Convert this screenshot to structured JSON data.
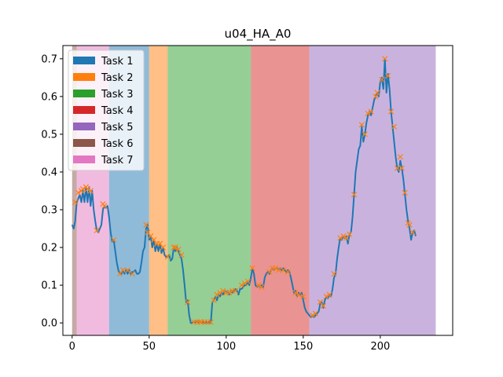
{
  "chart_data": {
    "type": "line",
    "title": "u04_HA_A0",
    "xlabel": "",
    "ylabel": "",
    "xlim": [
      -6,
      247
    ],
    "ylim": [
      -0.033,
      0.735
    ],
    "xticks": [
      0,
      50,
      100,
      150,
      200
    ],
    "yticks": [
      0.0,
      0.1,
      0.2,
      0.3,
      0.4,
      0.5,
      0.6,
      0.7
    ],
    "xtick_labels": [
      "0",
      "50",
      "100",
      "150",
      "200"
    ],
    "ytick_labels": [
      "0.0",
      "0.1",
      "0.2",
      "0.3",
      "0.4",
      "0.5",
      "0.6",
      "0.7"
    ],
    "legend_placement": "upper-left",
    "legend": [
      {
        "name": "Task 1",
        "color": "#1f77b4"
      },
      {
        "name": "Task 2",
        "color": "#ff7f0e"
      },
      {
        "name": "Task 3",
        "color": "#2ca02c"
      },
      {
        "name": "Task 4",
        "color": "#d62728"
      },
      {
        "name": "Task 5",
        "color": "#9467bd"
      },
      {
        "name": "Task 6",
        "color": "#8c564b"
      },
      {
        "name": "Task 7",
        "color": "#e377c2"
      }
    ],
    "task_spans": [
      {
        "task": "Task 6",
        "start": 0,
        "end": 3,
        "color": "#8c564b"
      },
      {
        "task": "Task 7",
        "start": 3,
        "end": 24,
        "color": "#e377c2"
      },
      {
        "task": "Task 1",
        "start": 24,
        "end": 50,
        "color": "#1f77b4"
      },
      {
        "task": "Task 2",
        "start": 50,
        "end": 62,
        "color": "#ff7f0e"
      },
      {
        "task": "Task 3",
        "start": 62,
        "end": 116,
        "color": "#2ca02c"
      },
      {
        "task": "Task 4",
        "start": 116,
        "end": 154,
        "color": "#d62728"
      },
      {
        "task": "Task 5",
        "start": 154,
        "end": 236,
        "color": "#9467bd"
      }
    ],
    "series": [
      {
        "color": "#1f77b4",
        "points": [
          [
            0,
            0.26
          ],
          [
            1,
            0.25
          ],
          [
            2,
            0.27
          ],
          [
            3,
            0.32
          ],
          [
            4,
            0.33
          ],
          [
            5,
            0.34
          ],
          [
            6,
            0.32
          ],
          [
            7,
            0.35
          ],
          [
            8,
            0.32
          ],
          [
            9,
            0.36
          ],
          [
            10,
            0.32
          ],
          [
            11,
            0.36
          ],
          [
            12,
            0.31
          ],
          [
            13,
            0.35
          ],
          [
            14,
            0.3
          ],
          [
            15,
            0.27
          ],
          [
            16,
            0.245
          ],
          [
            17,
            0.24
          ],
          [
            18,
            0.25
          ],
          [
            19,
            0.26
          ],
          [
            20,
            0.3
          ],
          [
            21,
            0.31
          ],
          [
            22,
            0.305
          ],
          [
            23,
            0.31
          ],
          [
            24,
            0.28
          ],
          [
            25,
            0.24
          ],
          [
            26,
            0.215
          ],
          [
            27,
            0.22
          ],
          [
            28,
            0.19
          ],
          [
            29,
            0.16
          ],
          [
            30,
            0.14
          ],
          [
            31,
            0.13
          ],
          [
            32,
            0.13
          ],
          [
            33,
            0.14
          ],
          [
            34,
            0.13
          ],
          [
            35,
            0.14
          ],
          [
            36,
            0.13
          ],
          [
            37,
            0.14
          ],
          [
            38,
            0.13
          ],
          [
            39,
            0.135
          ],
          [
            40,
            0.135
          ],
          [
            41,
            0.14
          ],
          [
            42,
            0.13
          ],
          [
            43,
            0.13
          ],
          [
            44,
            0.135
          ],
          [
            45,
            0.16
          ],
          [
            46,
            0.19
          ],
          [
            47,
            0.2
          ],
          [
            48,
            0.25
          ],
          [
            49,
            0.26
          ],
          [
            50,
            0.22
          ],
          [
            51,
            0.23
          ],
          [
            52,
            0.2
          ],
          [
            53,
            0.22
          ],
          [
            54,
            0.19
          ],
          [
            55,
            0.21
          ],
          [
            56,
            0.19
          ],
          [
            57,
            0.21
          ],
          [
            58,
            0.185
          ],
          [
            59,
            0.2
          ],
          [
            60,
            0.18
          ],
          [
            61,
            0.175
          ],
          [
            62,
            0.175
          ],
          [
            63,
            0.18
          ],
          [
            64,
            0.165
          ],
          [
            65,
            0.17
          ],
          [
            66,
            0.2
          ],
          [
            67,
            0.19
          ],
          [
            68,
            0.2
          ],
          [
            69,
            0.19
          ],
          [
            70,
            0.18
          ],
          [
            71,
            0.17
          ],
          [
            72,
            0.14
          ],
          [
            73,
            0.1
          ],
          [
            74,
            0.055
          ],
          [
            75,
            0.06
          ],
          [
            76,
            0.02
          ],
          [
            77,
            0.0
          ],
          [
            78,
            0.0
          ],
          [
            79,
            0.003
          ],
          [
            80,
            0.0
          ],
          [
            81,
            0.004
          ],
          [
            82,
            0.0
          ],
          [
            83,
            0.003
          ],
          [
            84,
            0.0
          ],
          [
            85,
            0.003
          ],
          [
            86,
            0.0
          ],
          [
            87,
            0.002
          ],
          [
            88,
            0.0
          ],
          [
            89,
            0.003
          ],
          [
            90,
            0.0
          ],
          [
            91,
            0.055
          ],
          [
            92,
            0.06
          ],
          [
            93,
            0.07
          ],
          [
            94,
            0.06
          ],
          [
            95,
            0.075
          ],
          [
            96,
            0.07
          ],
          [
            97,
            0.08
          ],
          [
            98,
            0.075
          ],
          [
            99,
            0.085
          ],
          [
            100,
            0.08
          ],
          [
            101,
            0.085
          ],
          [
            102,
            0.075
          ],
          [
            103,
            0.085
          ],
          [
            104,
            0.08
          ],
          [
            105,
            0.085
          ],
          [
            106,
            0.09
          ],
          [
            107,
            0.085
          ],
          [
            108,
            0.075
          ],
          [
            109,
            0.09
          ],
          [
            110,
            0.09
          ],
          [
            111,
            0.095
          ],
          [
            112,
            0.1
          ],
          [
            113,
            0.1
          ],
          [
            114,
            0.11
          ],
          [
            115,
            0.1
          ],
          [
            116,
            0.12
          ],
          [
            117,
            0.145
          ],
          [
            118,
            0.13
          ],
          [
            119,
            0.1
          ],
          [
            120,
            0.095
          ],
          [
            121,
            0.1
          ],
          [
            122,
            0.095
          ],
          [
            123,
            0.1
          ],
          [
            124,
            0.095
          ],
          [
            125,
            0.12
          ],
          [
            126,
            0.13
          ],
          [
            127,
            0.135
          ],
          [
            128,
            0.13
          ],
          [
            129,
            0.14
          ],
          [
            130,
            0.145
          ],
          [
            131,
            0.14
          ],
          [
            132,
            0.145
          ],
          [
            133,
            0.145
          ],
          [
            134,
            0.14
          ],
          [
            135,
            0.145
          ],
          [
            136,
            0.14
          ],
          [
            137,
            0.145
          ],
          [
            138,
            0.14
          ],
          [
            139,
            0.135
          ],
          [
            140,
            0.14
          ],
          [
            141,
            0.135
          ],
          [
            142,
            0.12
          ],
          [
            143,
            0.1
          ],
          [
            144,
            0.08
          ],
          [
            145,
            0.085
          ],
          [
            146,
            0.07
          ],
          [
            147,
            0.08
          ],
          [
            148,
            0.075
          ],
          [
            149,
            0.08
          ],
          [
            150,
            0.06
          ],
          [
            151,
            0.04
          ],
          [
            152,
            0.03
          ],
          [
            153,
            0.025
          ],
          [
            154,
            0.02
          ],
          [
            155,
            0.015
          ],
          [
            156,
            0.02
          ],
          [
            157,
            0.015
          ],
          [
            158,
            0.02
          ],
          [
            159,
            0.025
          ],
          [
            160,
            0.03
          ],
          [
            161,
            0.05
          ],
          [
            162,
            0.055
          ],
          [
            163,
            0.04
          ],
          [
            164,
            0.06
          ],
          [
            165,
            0.07
          ],
          [
            166,
            0.065
          ],
          [
            167,
            0.075
          ],
          [
            168,
            0.07
          ],
          [
            169,
            0.09
          ],
          [
            170,
            0.12
          ],
          [
            171,
            0.13
          ],
          [
            172,
            0.17
          ],
          [
            173,
            0.2
          ],
          [
            174,
            0.225
          ],
          [
            175,
            0.22
          ],
          [
            176,
            0.23
          ],
          [
            177,
            0.225
          ],
          [
            178,
            0.23
          ],
          [
            179,
            0.21
          ],
          [
            180,
            0.235
          ],
          [
            181,
            0.24
          ],
          [
            182,
            0.28
          ],
          [
            183,
            0.34
          ],
          [
            184,
            0.4
          ],
          [
            185,
            0.43
          ],
          [
            186,
            0.46
          ],
          [
            187,
            0.47
          ],
          [
            188,
            0.52
          ],
          [
            189,
            0.48
          ],
          [
            190,
            0.5
          ],
          [
            191,
            0.53
          ],
          [
            192,
            0.55
          ],
          [
            193,
            0.56
          ],
          [
            194,
            0.55
          ],
          [
            195,
            0.57
          ],
          [
            196,
            0.59
          ],
          [
            197,
            0.6
          ],
          [
            198,
            0.61
          ],
          [
            199,
            0.6
          ],
          [
            200,
            0.64
          ],
          [
            201,
            0.65
          ],
          [
            202,
            0.62
          ],
          [
            203,
            0.7
          ],
          [
            204,
            0.61
          ],
          [
            205,
            0.66
          ],
          [
            206,
            0.62
          ],
          [
            207,
            0.56
          ],
          [
            208,
            0.52
          ],
          [
            209,
            0.48
          ],
          [
            210,
            0.44
          ],
          [
            211,
            0.41
          ],
          [
            212,
            0.4
          ],
          [
            213,
            0.43
          ],
          [
            214,
            0.41
          ],
          [
            215,
            0.38
          ],
          [
            216,
            0.34
          ],
          [
            217,
            0.3
          ],
          [
            218,
            0.27
          ],
          [
            219,
            0.25
          ],
          [
            220,
            0.22
          ],
          [
            221,
            0.24
          ],
          [
            222,
            0.245
          ],
          [
            223,
            0.23
          ]
        ]
      }
    ],
    "markers": {
      "color": "#ff7f0e",
      "symbol": "x",
      "points": [
        [
          2,
          0.32
        ],
        [
          4,
          0.345
        ],
        [
          6,
          0.35
        ],
        [
          7,
          0.355
        ],
        [
          9,
          0.36
        ],
        [
          10,
          0.355
        ],
        [
          12,
          0.35
        ],
        [
          16,
          0.245
        ],
        [
          20,
          0.315
        ],
        [
          21,
          0.31
        ],
        [
          27,
          0.22
        ],
        [
          31,
          0.13
        ],
        [
          33,
          0.14
        ],
        [
          36,
          0.14
        ],
        [
          39,
          0.13
        ],
        [
          48,
          0.26
        ],
        [
          49,
          0.24
        ],
        [
          51,
          0.23
        ],
        [
          53,
          0.22
        ],
        [
          55,
          0.21
        ],
        [
          57,
          0.21
        ],
        [
          59,
          0.2
        ],
        [
          62,
          0.175
        ],
        [
          66,
          0.2
        ],
        [
          67,
          0.2
        ],
        [
          69,
          0.195
        ],
        [
          71,
          0.18
        ],
        [
          75,
          0.055
        ],
        [
          79,
          0.002
        ],
        [
          81,
          0.002
        ],
        [
          83,
          0.003
        ],
        [
          84,
          0.002
        ],
        [
          86,
          0.002
        ],
        [
          88,
          0.002
        ],
        [
          90,
          0.002
        ],
        [
          92,
          0.06
        ],
        [
          94,
          0.075
        ],
        [
          96,
          0.08
        ],
        [
          98,
          0.085
        ],
        [
          100,
          0.08
        ],
        [
          102,
          0.08
        ],
        [
          104,
          0.085
        ],
        [
          106,
          0.085
        ],
        [
          110,
          0.1
        ],
        [
          112,
          0.105
        ],
        [
          114,
          0.11
        ],
        [
          117,
          0.145
        ],
        [
          121,
          0.1
        ],
        [
          123,
          0.095
        ],
        [
          128,
          0.135
        ],
        [
          130,
          0.145
        ],
        [
          132,
          0.145
        ],
        [
          134,
          0.14
        ],
        [
          137,
          0.14
        ],
        [
          140,
          0.135
        ],
        [
          145,
          0.08
        ],
        [
          147,
          0.075
        ],
        [
          150,
          0.07
        ],
        [
          156,
          0.02
        ],
        [
          158,
          0.025
        ],
        [
          161,
          0.055
        ],
        [
          163,
          0.045
        ],
        [
          165,
          0.07
        ],
        [
          167,
          0.075
        ],
        [
          170,
          0.13
        ],
        [
          174,
          0.225
        ],
        [
          176,
          0.23
        ],
        [
          178,
          0.225
        ],
        [
          180,
          0.235
        ],
        [
          183,
          0.34
        ],
        [
          188,
          0.525
        ],
        [
          190,
          0.5
        ],
        [
          192,
          0.555
        ],
        [
          194,
          0.56
        ],
        [
          197,
          0.6
        ],
        [
          198,
          0.61
        ],
        [
          201,
          0.645
        ],
        [
          203,
          0.7
        ],
        [
          205,
          0.655
        ],
        [
          207,
          0.56
        ],
        [
          209,
          0.52
        ],
        [
          211,
          0.41
        ],
        [
          213,
          0.44
        ],
        [
          214,
          0.41
        ],
        [
          216,
          0.345
        ],
        [
          218,
          0.265
        ],
        [
          219,
          0.26
        ],
        [
          221,
          0.24
        ]
      ]
    }
  }
}
